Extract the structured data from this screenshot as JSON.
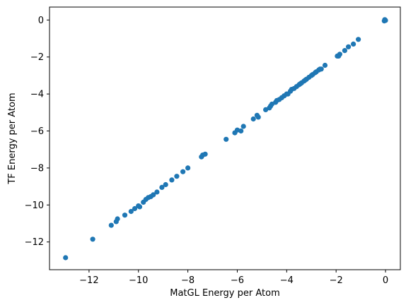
{
  "chart_data": {
    "type": "scatter",
    "title": "",
    "xlabel": "MatGL Energy per Atom",
    "ylabel": "TF Energy per Atom",
    "xlim": [
      -13.6,
      0.6
    ],
    "ylim": [
      -13.5,
      0.7
    ],
    "xticks": [
      -12,
      -10,
      -8,
      -6,
      -4,
      -2,
      0
    ],
    "yticks": [
      -12,
      -10,
      -8,
      -6,
      -4,
      -2,
      0
    ],
    "grid": false,
    "legend": "none",
    "marker_color": "#1f77b4",
    "series": [
      {
        "points": [
          [
            -12.95,
            -12.85
          ],
          [
            -11.85,
            -11.85
          ],
          [
            -11.1,
            -11.1
          ],
          [
            -10.9,
            -10.9
          ],
          [
            -10.85,
            -10.75
          ],
          [
            -10.55,
            -10.55
          ],
          [
            -10.3,
            -10.35
          ],
          [
            -10.15,
            -10.2
          ],
          [
            -10.0,
            -10.05
          ],
          [
            -9.95,
            -10.1
          ],
          [
            -9.8,
            -9.85
          ],
          [
            -9.7,
            -9.7
          ],
          [
            -9.6,
            -9.6
          ],
          [
            -9.5,
            -9.55
          ],
          [
            -9.4,
            -9.45
          ],
          [
            -9.25,
            -9.3
          ],
          [
            -9.05,
            -9.05
          ],
          [
            -8.9,
            -8.9
          ],
          [
            -8.65,
            -8.65
          ],
          [
            -8.45,
            -8.45
          ],
          [
            -8.2,
            -8.2
          ],
          [
            -8.0,
            -8.0
          ],
          [
            -7.45,
            -7.4
          ],
          [
            -7.4,
            -7.3
          ],
          [
            -7.3,
            -7.25
          ],
          [
            -6.45,
            -6.45
          ],
          [
            -6.1,
            -6.1
          ],
          [
            -6.0,
            -5.95
          ],
          [
            -5.85,
            -6.0
          ],
          [
            -5.75,
            -5.75
          ],
          [
            -5.35,
            -5.35
          ],
          [
            -5.2,
            -5.15
          ],
          [
            -5.15,
            -5.25
          ],
          [
            -4.85,
            -4.85
          ],
          [
            -4.7,
            -4.75
          ],
          [
            -4.65,
            -4.65
          ],
          [
            -4.6,
            -4.55
          ],
          [
            -4.45,
            -4.45
          ],
          [
            -4.4,
            -4.35
          ],
          [
            -4.3,
            -4.3
          ],
          [
            -4.2,
            -4.2
          ],
          [
            -4.1,
            -4.1
          ],
          [
            -4.0,
            -4.0
          ],
          [
            -3.95,
            -4.0
          ],
          [
            -3.85,
            -3.85
          ],
          [
            -3.8,
            -3.75
          ],
          [
            -3.7,
            -3.7
          ],
          [
            -3.6,
            -3.6
          ],
          [
            -3.5,
            -3.5
          ],
          [
            -3.45,
            -3.45
          ],
          [
            -3.4,
            -3.4
          ],
          [
            -3.3,
            -3.3
          ],
          [
            -3.25,
            -3.25
          ],
          [
            -3.2,
            -3.2
          ],
          [
            -3.1,
            -3.1
          ],
          [
            -3.0,
            -3.0
          ],
          [
            -2.95,
            -2.95
          ],
          [
            -2.85,
            -2.85
          ],
          [
            -2.8,
            -2.8
          ],
          [
            -2.7,
            -2.7
          ],
          [
            -2.65,
            -2.65
          ],
          [
            -2.6,
            -2.65
          ],
          [
            -2.45,
            -2.45
          ],
          [
            -1.95,
            -1.95
          ],
          [
            -1.9,
            -1.95
          ],
          [
            -1.85,
            -1.85
          ],
          [
            -1.65,
            -1.65
          ],
          [
            -1.5,
            -1.45
          ],
          [
            -1.3,
            -1.3
          ],
          [
            -1.1,
            -1.05
          ],
          [
            -0.05,
            -0.05
          ],
          [
            -0.02,
            0.0
          ],
          [
            0.0,
            -0.02
          ],
          [
            -0.03,
            0.02
          ]
        ]
      }
    ]
  }
}
